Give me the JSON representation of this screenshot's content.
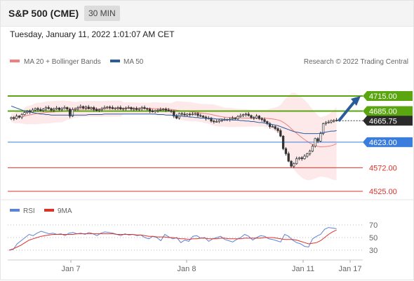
{
  "header": {
    "title": "S&P 500 (CME)",
    "timeframe": "30 MIN"
  },
  "timestamp": "Tuesday, January 11, 2022 1:01:07 AM CET",
  "legend": {
    "items": [
      {
        "label": "MA 20 + Bollinger Bands",
        "color": "#f08080"
      },
      {
        "label": "MA 50",
        "color": "#2b5c9a"
      }
    ],
    "copyright": "Research © 2022 Trading Central"
  },
  "chart_data": [
    {
      "type": "line",
      "title": "S&P 500 (CME) 30 MIN",
      "x_ticks": [
        "Jan 7",
        "Jan 8",
        "Jan 11",
        "Jan 17"
      ],
      "ylim": [
        4500,
        4740
      ],
      "last_price": "4665.75",
      "levels": [
        {
          "value": 4715,
          "label": "4715.00",
          "color": "#5aa510",
          "kind": "resistance"
        },
        {
          "value": 4685,
          "label": "4685.00",
          "color": "#5aa510",
          "kind": "resistance"
        },
        {
          "value": 4623,
          "label": "4623.00",
          "color": "#3b7ddd",
          "kind": "pivot"
        },
        {
          "value": 4572,
          "label": "4572.00",
          "color": "#e0302a",
          "kind": "support"
        },
        {
          "value": 4525,
          "label": "4525.00",
          "color": "#e0302a",
          "kind": "support"
        }
      ],
      "arrow": {
        "from": 4665,
        "to": 4715,
        "color": "#2b5c9a"
      },
      "series": [
        {
          "name": "MA 20 + Bollinger Bands",
          "color": "#f08080"
        },
        {
          "name": "MA 50",
          "color": "#2b5c9a"
        }
      ],
      "close": [
        4672,
        4670,
        4675,
        4673,
        4678,
        4682,
        4685,
        4683,
        4687,
        4690,
        4688,
        4686,
        4689,
        4692,
        4690,
        4687,
        4689,
        4691,
        4688,
        4690,
        4692,
        4689,
        4675,
        4688,
        4690,
        4692,
        4694,
        4691,
        4693,
        4690,
        4692,
        4688,
        4686,
        4688,
        4690,
        4692,
        4693,
        4692,
        4690,
        4691,
        4692,
        4689,
        4690,
        4691,
        4692,
        4689,
        4690,
        4688,
        4690,
        4692,
        4690,
        4689,
        4685,
        4684,
        4686,
        4687,
        4688,
        4689,
        4687,
        4686,
        4684,
        4675,
        4671,
        4680,
        4679,
        4677,
        4679,
        4678,
        4679,
        4680,
        4676,
        4675,
        4673,
        4670,
        4671,
        4665,
        4664,
        4664,
        4667,
        4667,
        4668,
        4668,
        4669,
        4671,
        4670,
        4674,
        4676,
        4678,
        4679,
        4676,
        4672,
        4671,
        4675,
        4670,
        4668,
        4664,
        4660,
        4654,
        4654,
        4650,
        4646,
        4635,
        4610,
        4600,
        4585,
        4575,
        4580,
        4590,
        4592,
        4590,
        4595,
        4600,
        4605,
        4615,
        4630,
        4625,
        4640,
        4660,
        4662,
        4663,
        4666,
        4666,
        4667
      ],
      "ma50": [
        4695,
        4693,
        4691,
        4689,
        4687,
        4685,
        4684,
        4683,
        4682,
        4681,
        4680,
        4679,
        4679,
        4678,
        4678,
        4677,
        4677,
        4677,
        4677,
        4677,
        4677,
        4677,
        4677,
        4677,
        4677,
        4677,
        4677,
        4677,
        4677,
        4678,
        4678,
        4678,
        4678,
        4678,
        4678,
        4679,
        4679,
        4679,
        4679,
        4679,
        4679,
        4679,
        4679,
        4679,
        4679,
        4679,
        4679,
        4679,
        4679,
        4679,
        4679,
        4679,
        4679,
        4679,
        4679,
        4678,
        4678,
        4678,
        4677,
        4677,
        4677,
        4676,
        4676,
        4675,
        4675,
        4674,
        4674,
        4673,
        4673,
        4672,
        4672,
        4671,
        4671,
        4671,
        4670,
        4670,
        4670,
        4669,
        4669,
        4669,
        4668,
        4668,
        4668,
        4667,
        4667,
        4667,
        4666,
        4666,
        4665,
        4665,
        4664,
        4664,
        4663,
        4662,
        4662,
        4661,
        4660,
        4659,
        4658,
        4657,
        4656,
        4654,
        4652,
        4650,
        4648,
        4646,
        4644,
        4643,
        4642,
        4641,
        4640,
        4640,
        4640,
        4640,
        4640,
        4640,
        4641,
        4642,
        4643,
        4644,
        4645,
        4645,
        4646
      ]
    },
    {
      "type": "line",
      "title": "RSI",
      "x_ticks": [
        "Jan 7",
        "Jan 8",
        "Jan 11",
        "Jan 17"
      ],
      "y_ticks": [
        30,
        50,
        70
      ],
      "ylim": [
        10,
        80
      ],
      "series": [
        {
          "name": "RSI",
          "color": "#5b83d6",
          "values": [
            30,
            31,
            40,
            45,
            50,
            55,
            53,
            57,
            60,
            58,
            56,
            57,
            55,
            56,
            53,
            57,
            58,
            56,
            57,
            55,
            58,
            56,
            53,
            57,
            59,
            58,
            57,
            55,
            53,
            56,
            54,
            55,
            53,
            54,
            50,
            48,
            52,
            50,
            45,
            55,
            51,
            48,
            50,
            42,
            46,
            44,
            52,
            53,
            49,
            50,
            44,
            48,
            50,
            52,
            47,
            45,
            43,
            47,
            50,
            55,
            52,
            46,
            50,
            53,
            52,
            48,
            47,
            45,
            43,
            55,
            52,
            46,
            42,
            40,
            36,
            35,
            48,
            52,
            55,
            63,
            66,
            65,
            64
          ]
        },
        {
          "name": "9MA",
          "color": "#e0302a",
          "values": [
            30,
            32,
            35,
            38,
            42,
            46,
            48,
            50,
            52,
            53,
            54,
            55,
            55,
            55,
            55,
            55,
            55,
            56,
            56,
            56,
            56,
            56,
            56,
            56,
            56,
            56,
            56,
            55,
            55,
            55,
            55,
            55,
            54,
            54,
            53,
            52,
            52,
            51,
            51,
            51,
            50,
            50,
            49,
            48,
            48,
            47,
            48,
            48,
            49,
            49,
            48,
            48,
            48,
            49,
            49,
            48,
            48,
            48,
            48,
            49,
            49,
            49,
            49,
            49,
            50,
            50,
            50,
            49,
            48,
            47,
            47,
            47,
            46,
            44,
            42,
            40,
            41,
            42,
            45,
            50,
            55,
            59,
            62
          ]
        }
      ]
    }
  ]
}
